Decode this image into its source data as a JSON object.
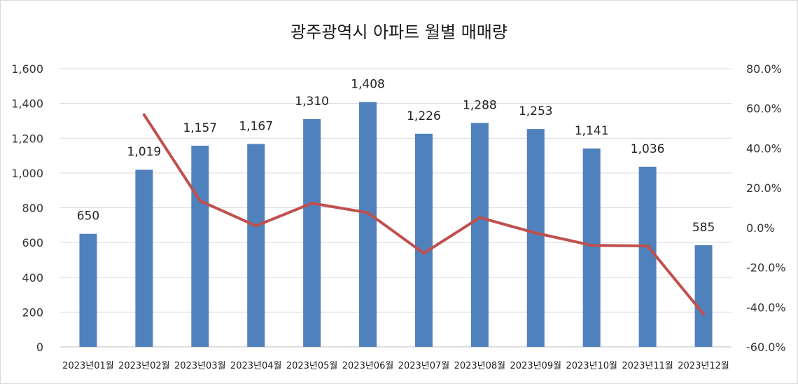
{
  "chart_data": {
    "type": "bar",
    "title": "광주광역시 아파트 월별 매매량",
    "categories": [
      "2023년01월",
      "2023년02월",
      "2023년03월",
      "2023년04월",
      "2023년05월",
      "2023년06월",
      "2023년07월",
      "2023년08월",
      "2023년09월",
      "2023년10월",
      "2023년11월",
      "2023년12월"
    ],
    "series": [
      {
        "type": "bar",
        "axis": "left",
        "values": [
          650,
          1019,
          1157,
          1167,
          1310,
          1408,
          1226,
          1288,
          1253,
          1141,
          1036,
          585
        ],
        "data_labels": [
          "650",
          "1,019",
          "1,157",
          "1,167",
          "1,310",
          "1,408",
          "1,226",
          "1,288",
          "1,253",
          "1,141",
          "1,036",
          "585"
        ],
        "color": "#4f81bd"
      },
      {
        "type": "line",
        "axis": "right",
        "values": [
          null,
          56.8,
          13.5,
          0.9,
          12.3,
          7.5,
          -12.9,
          5.1,
          -2.7,
          -8.9,
          -9.2,
          -43.5
        ],
        "color": "#c0504d"
      }
    ],
    "y_left": {
      "range": [
        0,
        1600
      ],
      "ticks": [
        0,
        200,
        400,
        600,
        800,
        1000,
        1200,
        1400,
        1600
      ],
      "tick_labels": [
        "0",
        "200",
        "400",
        "600",
        "800",
        "1,000",
        "1,200",
        "1,400",
        "1,600"
      ]
    },
    "y_right": {
      "range": [
        -60,
        80
      ],
      "ticks": [
        -60,
        -40,
        -20,
        0,
        20,
        40,
        60,
        80
      ],
      "tick_labels": [
        "-60.0%",
        "-40.0%",
        "-20.0%",
        "0.0%",
        "20.0%",
        "40.0%",
        "60.0%",
        "80.0%"
      ]
    },
    "grid": true,
    "legend": "none",
    "colors": {
      "gridline": "#d9d9d9",
      "axis": "#bfbfbf"
    }
  }
}
